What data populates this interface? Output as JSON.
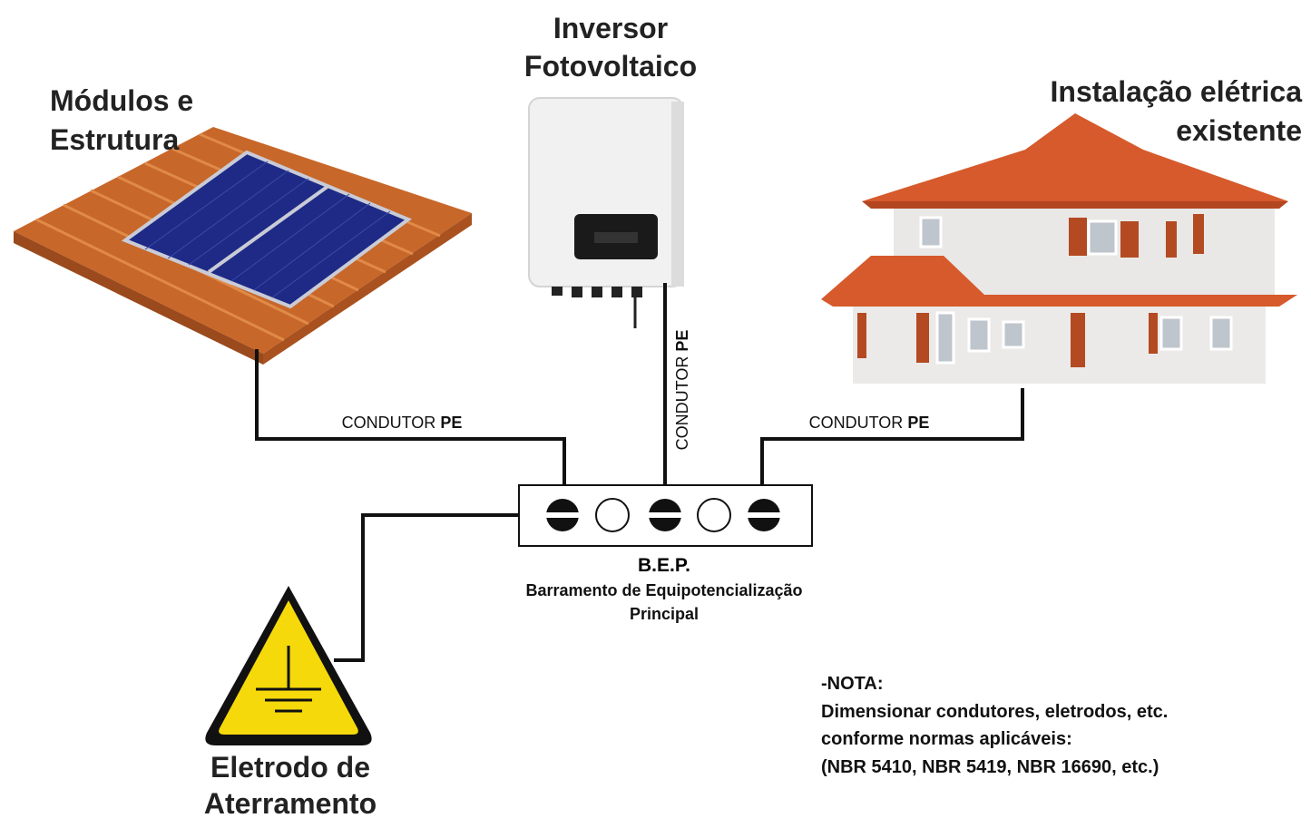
{
  "labels": {
    "modules": {
      "lines": [
        "Módulos e",
        "Estrutura"
      ]
    },
    "inverter": {
      "lines": [
        "Inversor",
        "Fotovoltaico"
      ]
    },
    "house": {
      "lines": [
        "Instalação elétrica",
        "existente"
      ]
    },
    "electrode": {
      "lines": [
        "Eletrodo de",
        "Aterramento"
      ]
    }
  },
  "conductors": [
    {
      "text": "CONDUTOR",
      "bold": "PE"
    },
    {
      "text": "CONDUTOR",
      "bold": "PE"
    },
    {
      "text": "CONDUTOR",
      "bold": "PE"
    }
  ],
  "bep": {
    "title": "B.E.P.",
    "lines": [
      "Barramento de Equipotencialização",
      "Principal"
    ]
  },
  "note": {
    "title": "-NOTA:",
    "lines": [
      "Dimensionar condutores, eletrodos, etc.",
      "conforme normas aplicáveis:",
      "(NBR 5410, NBR 5419, NBR 16690, etc.)"
    ]
  }
}
